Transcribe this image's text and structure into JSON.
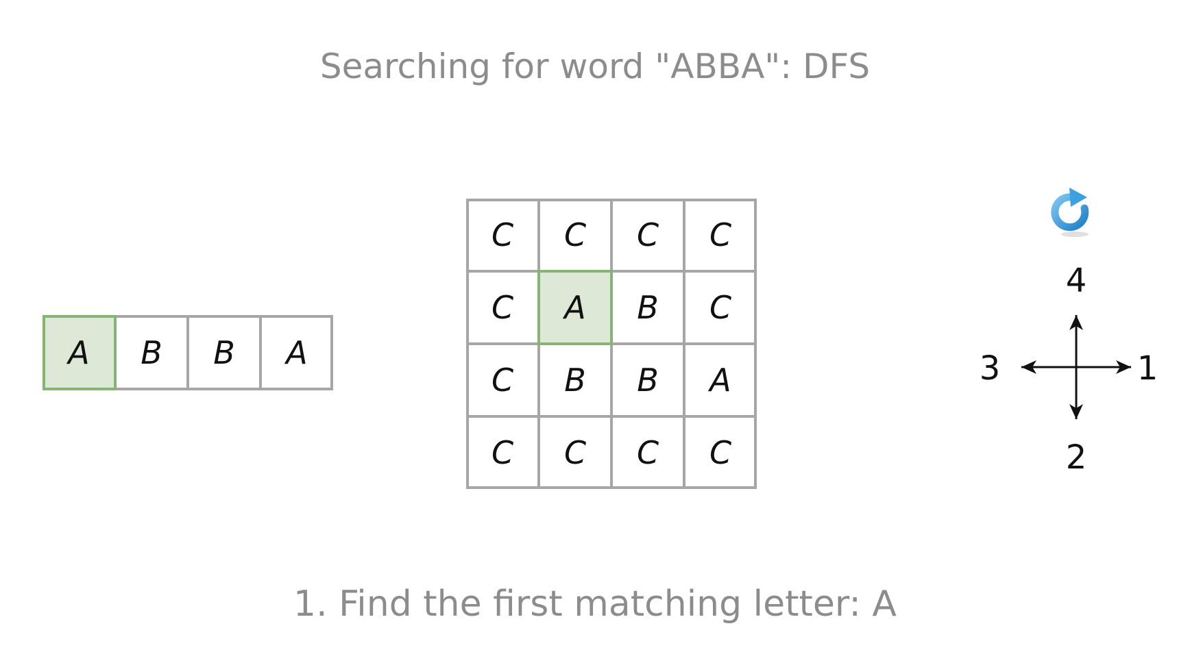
{
  "title": "Searching for word \"ABBA\": DFS",
  "caption": "1. Find the first matching letter: A",
  "word": {
    "letters": [
      "A",
      "B",
      "B",
      "A"
    ],
    "highlight_index": 0
  },
  "grid": {
    "rows": [
      [
        "C",
        "C",
        "C",
        "C"
      ],
      [
        "C",
        "A",
        "B",
        "C"
      ],
      [
        "C",
        "B",
        "B",
        "A"
      ],
      [
        "C",
        "C",
        "C",
        "C"
      ]
    ],
    "highlight": [
      1,
      1
    ]
  },
  "directions": {
    "right": "1",
    "down": "2",
    "left": "3",
    "up": "4"
  },
  "icons": {
    "restart": "redo-icon",
    "compass": "compass-arrows-icon"
  },
  "colors": {
    "highlight_fill": "#dde9d6",
    "highlight_border": "#87b472",
    "cell_border": "#a6a6a6",
    "text_gray": "#8c8c8c",
    "icon_blue": "#2f95d8"
  }
}
